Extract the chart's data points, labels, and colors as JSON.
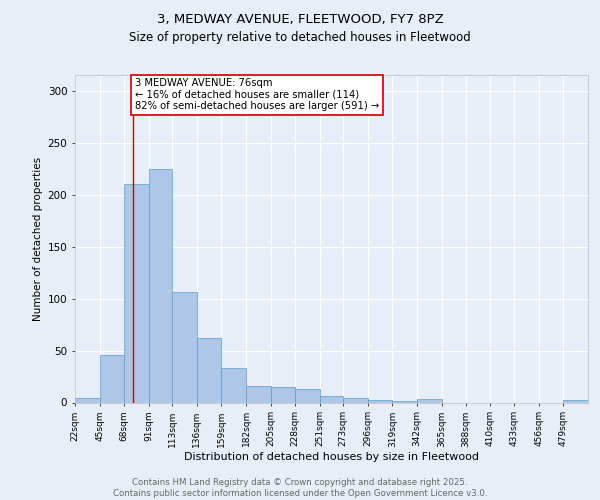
{
  "title1": "3, MEDWAY AVENUE, FLEETWOOD, FY7 8PZ",
  "title2": "Size of property relative to detached houses in Fleetwood",
  "xlabel": "Distribution of detached houses by size in Fleetwood",
  "ylabel": "Number of detached properties",
  "bar_edges": [
    22,
    45,
    68,
    91,
    113,
    136,
    159,
    182,
    205,
    228,
    251,
    273,
    296,
    319,
    342,
    365,
    388,
    410,
    433,
    456,
    479
  ],
  "bar_heights": [
    4,
    46,
    210,
    225,
    106,
    62,
    33,
    16,
    15,
    13,
    6,
    4,
    2,
    1,
    3,
    0,
    0,
    0,
    0,
    0,
    2
  ],
  "bar_color": "#aec6e8",
  "bar_edge_color": "#5a9fc8",
  "property_size": 76,
  "property_line_color": "#cc0000",
  "annotation_text": "3 MEDWAY AVENUE: 76sqm\n← 16% of detached houses are smaller (114)\n82% of semi-detached houses are larger (591) →",
  "annotation_box_color": "#ffffff",
  "annotation_box_edge_color": "#cc0000",
  "ylim": [
    0,
    315
  ],
  "yticks": [
    0,
    50,
    100,
    150,
    200,
    250,
    300
  ],
  "tick_labels": [
    "22sqm",
    "45sqm",
    "68sqm",
    "91sqm",
    "113sqm",
    "136sqm",
    "159sqm",
    "182sqm",
    "205sqm",
    "228sqm",
    "251sqm",
    "273sqm",
    "296sqm",
    "319sqm",
    "342sqm",
    "365sqm",
    "388sqm",
    "410sqm",
    "433sqm",
    "456sqm",
    "479sqm"
  ],
  "footer_text": "Contains HM Land Registry data © Crown copyright and database right 2025.\nContains public sector information licensed under the Open Government Licence v3.0.",
  "bg_color": "#e8eef8",
  "plot_bg_color": "#e8eef8"
}
